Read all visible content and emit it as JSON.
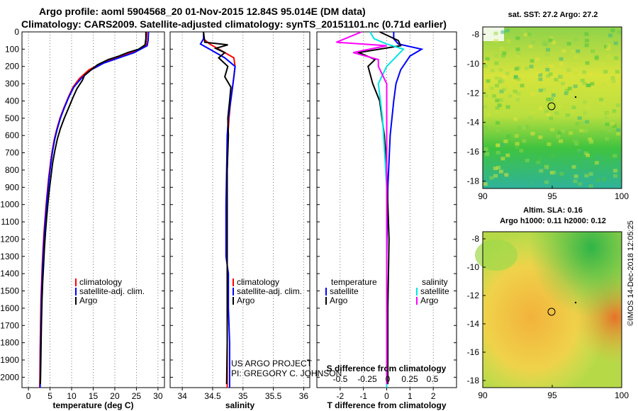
{
  "header": {
    "line1": "Argo profile: aoml 5904568_20 01-Nov-2015 12.84S 95.014E (DM data)",
    "line2": "Climatology: CARS2009. Satellite-adjusted climatology: synTS_20151101.nc (0.71d earlier)"
  },
  "colors": {
    "climatology": "#ff0000",
    "satellite": "#0000ff",
    "argo": "#000000",
    "sal_satellite": "#00e5e5",
    "sal_argo": "#ff00ff"
  },
  "depth_axis": {
    "ticks": [
      0,
      100,
      200,
      300,
      400,
      500,
      600,
      700,
      800,
      900,
      1000,
      1100,
      1200,
      1300,
      1400,
      1500,
      1600,
      1700,
      1800,
      1900,
      2000
    ],
    "range": [
      0,
      2060
    ]
  },
  "watermark": "©IMOS 14-Dec-2018 12:05:25",
  "credit": {
    "line1": "US ARGO PROJECT",
    "line2": "PI: GREGORY C. JOHNSON"
  },
  "chart_data": [
    {
      "type": "line",
      "panel": "temperature",
      "xlabel": "temperature (deg C)",
      "xlim": [
        -1.5,
        31.5
      ],
      "xticks": [
        0,
        5,
        10,
        15,
        20,
        25,
        30
      ],
      "legend": [
        "climatology",
        "satellite-adj. clim.",
        "Argo"
      ],
      "series": [
        {
          "name": "climatology",
          "x": [
            27.4,
            27.3,
            27.2,
            24.0,
            20.5,
            17.0,
            14.0,
            11.8,
            10.3,
            9.2,
            8.2,
            7.3,
            6.6,
            6.0,
            5.5,
            5.1,
            4.7,
            4.4,
            4.1,
            3.85,
            3.6,
            3.4,
            3.2,
            3.05,
            2.9,
            2.8,
            2.7,
            2.65,
            2.6
          ],
          "depth": [
            0,
            50,
            80,
            120,
            150,
            180,
            220,
            270,
            320,
            380,
            440,
            500,
            560,
            620,
            690,
            760,
            840,
            920,
            1000,
            1080,
            1160,
            1250,
            1350,
            1450,
            1550,
            1700,
            1850,
            2000,
            2060
          ]
        },
        {
          "name": "satellite-adj. clim.",
          "x": [
            27.8,
            27.7,
            27.5,
            24.5,
            21.0,
            17.5,
            14.5,
            12.2,
            10.5,
            9.3,
            8.3,
            7.4,
            6.7,
            6.1,
            5.6,
            5.2,
            4.8,
            4.5,
            4.2,
            3.95,
            3.7,
            3.5,
            3.3,
            3.15,
            3.0,
            2.9,
            2.8,
            2.75,
            2.7
          ],
          "depth": [
            0,
            50,
            80,
            120,
            150,
            180,
            220,
            270,
            320,
            380,
            440,
            500,
            560,
            620,
            690,
            760,
            840,
            920,
            1000,
            1080,
            1160,
            1250,
            1350,
            1450,
            1550,
            1700,
            1850,
            2000,
            2060
          ]
        },
        {
          "name": "Argo",
          "x": [
            27.2,
            27.2,
            27.0,
            25.5,
            23.0,
            21.0,
            18.5,
            16.0,
            15.0,
            13.0,
            12.5,
            11.2,
            10.3,
            9.3,
            8.3,
            7.4,
            6.7,
            6.1,
            5.6,
            5.2,
            4.8,
            4.5,
            4.2,
            3.95,
            3.7,
            3.5,
            3.3,
            3.15,
            3.0,
            2.9,
            2.8,
            2.75
          ],
          "depth": [
            0,
            40,
            75,
            100,
            120,
            140,
            160,
            190,
            210,
            250,
            280,
            330,
            380,
            440,
            500,
            560,
            620,
            690,
            760,
            840,
            920,
            1000,
            1080,
            1160,
            1250,
            1350,
            1450,
            1550,
            1700,
            1850,
            2000,
            2040
          ]
        }
      ]
    },
    {
      "type": "line",
      "panel": "salinity",
      "xlabel": "salinity",
      "xlim": [
        33.8,
        36.1
      ],
      "xticks": [
        34,
        34.5,
        35,
        35.5,
        36
      ],
      "xticklabels": [
        "34",
        "34.5",
        "35",
        "35.5",
        "36"
      ],
      "legend": [
        "climatology",
        "satellite-adj. clim.",
        "Argo"
      ],
      "series": [
        {
          "name": "climatology",
          "x": [
            34.35,
            34.35,
            34.45,
            34.65,
            34.85,
            34.87,
            34.85,
            34.82,
            34.79,
            34.77,
            34.75,
            34.74,
            34.74,
            34.74,
            34.74,
            34.74,
            34.74
          ],
          "depth": [
            0,
            40,
            70,
            110,
            150,
            200,
            260,
            340,
            420,
            500,
            600,
            800,
            1000,
            1400,
            1700,
            2000,
            2060
          ]
        },
        {
          "name": "satellite-adj. clim.",
          "x": [
            34.35,
            34.35,
            34.3,
            34.45,
            34.7,
            34.87,
            34.85,
            34.82,
            34.79,
            34.76,
            34.74,
            34.73,
            34.72,
            34.72,
            34.76,
            34.76,
            34.78,
            34.78
          ],
          "depth": [
            0,
            40,
            70,
            100,
            150,
            200,
            260,
            340,
            420,
            500,
            600,
            800,
            1000,
            1300,
            1400,
            1600,
            1800,
            2060
          ]
        },
        {
          "name": "Argo",
          "x": [
            34.35,
            34.37,
            34.75,
            34.55,
            34.7,
            34.6,
            34.75,
            34.7,
            34.8,
            34.78,
            34.75,
            34.76,
            34.74,
            34.74,
            34.74,
            34.74,
            34.73
          ],
          "depth": [
            0,
            60,
            75,
            95,
            120,
            150,
            200,
            260,
            320,
            400,
            500,
            600,
            800,
            1000,
            1400,
            1800,
            2040
          ]
        }
      ]
    },
    {
      "type": "line",
      "panel": "differences",
      "xlabel": "T difference from climatology",
      "xlim": [
        -3,
        3
      ],
      "xticks": [
        -2,
        -1,
        0,
        1,
        2
      ],
      "xticklabels": [
        "-2",
        "-1",
        "0",
        "1",
        "2"
      ],
      "x2label": "S difference from climatology",
      "x2ticks": [
        "-0.5",
        "-0.25",
        "0",
        "0.25",
        "0.5"
      ],
      "legend_temperature": [
        "satellite",
        "Argo"
      ],
      "legend_salinity": [
        "satellite",
        "Argo"
      ],
      "series": [
        {
          "name": "T satellite",
          "x": [
            0.3,
            0.3,
            0.5,
            1.5,
            1.0,
            0.6,
            0.4,
            0.3,
            0.15,
            0.05,
            0.0,
            0.0,
            0.0
          ],
          "depth": [
            0,
            40,
            70,
            100,
            140,
            220,
            300,
            400,
            600,
            900,
            1300,
            1700,
            2060
          ]
        },
        {
          "name": "T Argo",
          "x": [
            -0.3,
            0.5,
            0.6,
            -1.2,
            -0.5,
            -0.8,
            -0.6,
            -0.3,
            -0.2,
            -0.1,
            0.0,
            0.1,
            0.05,
            0.05
          ],
          "depth": [
            0,
            50,
            80,
            120,
            160,
            200,
            300,
            400,
            500,
            600,
            800,
            1200,
            1600,
            2040
          ]
        },
        {
          "name": "S satellite",
          "x": [
            -0.2,
            -0.15,
            0.0,
            0.2,
            0.1,
            0.0,
            -0.1,
            -0.05,
            0.0,
            0.0,
            0.0
          ],
          "depth": [
            0,
            40,
            70,
            100,
            150,
            200,
            300,
            500,
            900,
            1500,
            2060
          ]
        },
        {
          "name": "S Argo",
          "x": [
            -0.3,
            -0.6,
            0.0,
            -0.4,
            -0.1,
            -0.1,
            0.0,
            0.0,
            0.0,
            0.0
          ],
          "depth": [
            0,
            60,
            80,
            120,
            160,
            200,
            300,
            600,
            1300,
            2040
          ]
        }
      ]
    },
    {
      "type": "heatmap",
      "panel": "SST map",
      "title": "sat. SST: 27.2 Argo: 27.2",
      "xticks": [
        "90",
        "95",
        "100"
      ],
      "yticks": [
        "-8",
        "-10",
        "-12",
        "-14",
        "-16",
        "-18"
      ],
      "xlim": [
        90,
        100
      ],
      "ylim": [
        -18.5,
        -7.5
      ],
      "marker": {
        "lon": 95.014,
        "lat": -12.84
      }
    },
    {
      "type": "heatmap",
      "panel": "SLA map",
      "title": "Altim. SLA: 0.16",
      "subtitle": "Argo h1000: 0.11 h2000: 0.12",
      "xticks": [
        "90",
        "95",
        "100"
      ],
      "yticks": [
        "-8",
        "-10",
        "-12",
        "-14",
        "-16",
        "-18"
      ],
      "xlim": [
        90,
        100
      ],
      "ylim": [
        -18.5,
        -7.5
      ],
      "marker": {
        "lon": 95.014,
        "lat": -12.84
      }
    }
  ]
}
